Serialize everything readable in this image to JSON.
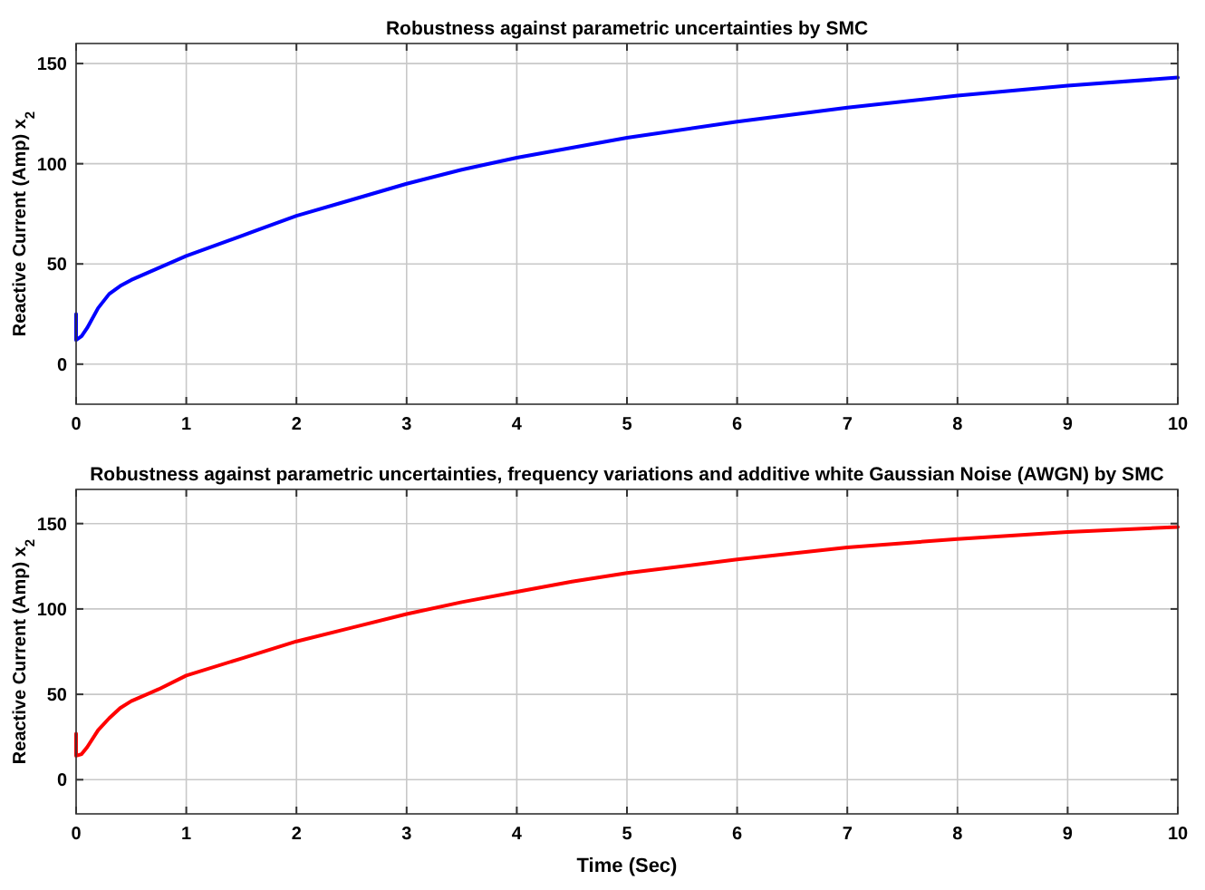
{
  "chart_data": [
    {
      "type": "line",
      "title": "Robustness against parametric uncertainties by SMC",
      "ylabel": "Reactive Current (Amp) x$_{2}$",
      "xlim": [
        0,
        10
      ],
      "ylim": [
        -20,
        160
      ],
      "xticks": [
        0,
        1,
        2,
        3,
        4,
        5,
        6,
        7,
        8,
        9,
        10
      ],
      "yticks": [
        0,
        50,
        100,
        150
      ],
      "grid": true,
      "series": [
        {
          "color": "#0000ff",
          "x": [
            0,
            0,
            0.05,
            0.1,
            0.2,
            0.3,
            0.4,
            0.5,
            0.75,
            1,
            1.5,
            2,
            2.5,
            3,
            3.5,
            4,
            4.5,
            5,
            6,
            7,
            8,
            9,
            10
          ],
          "values": [
            25,
            12,
            14,
            18,
            28,
            35,
            39,
            42,
            48,
            54,
            64,
            74,
            82,
            90,
            97,
            103,
            108,
            113,
            121,
            128,
            134,
            139,
            143
          ]
        }
      ]
    },
    {
      "type": "line",
      "title": "Robustness against parametric uncertainties, frequency variations and additive white Gaussian Noise (AWGN) by SMC",
      "xlabel": "Time (Sec)",
      "ylabel": "Reactive Current (Amp) x$_{2}$",
      "xlim": [
        0,
        10
      ],
      "ylim": [
        -20,
        170
      ],
      "xticks": [
        0,
        1,
        2,
        3,
        4,
        5,
        6,
        7,
        8,
        9,
        10
      ],
      "yticks": [
        0,
        50,
        100,
        150
      ],
      "grid": true,
      "series": [
        {
          "color": "#ff0000",
          "x": [
            0,
            0,
            0.05,
            0.1,
            0.2,
            0.3,
            0.4,
            0.5,
            0.75,
            1,
            1.5,
            2,
            2.5,
            3,
            3.5,
            4,
            4.5,
            5,
            6,
            7,
            8,
            9,
            10
          ],
          "values": [
            27,
            14,
            15,
            19,
            29,
            36,
            42,
            46,
            53,
            61,
            71,
            81,
            89,
            97,
            104,
            110,
            116,
            121,
            129,
            136,
            141,
            145,
            148
          ]
        }
      ]
    }
  ]
}
